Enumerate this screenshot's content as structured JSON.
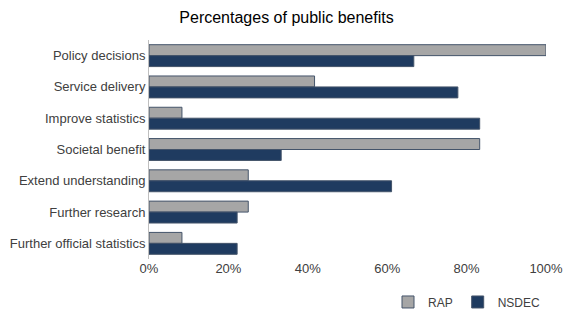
{
  "chart_data": {
    "type": "bar",
    "title": "Percentages of public benefits",
    "orientation": "horizontal",
    "categories": [
      "Policy decisions",
      "Service delivery",
      "Improve statistics",
      "Societal benefit",
      "Extend understanding",
      "Further research",
      "Further official statistics"
    ],
    "series": [
      {
        "name": "RAP",
        "color": "#a6a6a6",
        "values": [
          100,
          41.7,
          8.3,
          83.3,
          25,
          25,
          8.3
        ]
      },
      {
        "name": "NSDEC",
        "color": "#1f3b60",
        "values": [
          66.7,
          77.8,
          83.3,
          33.3,
          61.1,
          22.2,
          22.2
        ]
      }
    ],
    "xlim": [
      0,
      100
    ],
    "xticks": [
      {
        "value": 0,
        "label": "0%"
      },
      {
        "value": 20,
        "label": "20%"
      },
      {
        "value": 40,
        "label": "40%"
      },
      {
        "value": 60,
        "label": "60%"
      },
      {
        "value": 80,
        "label": "80%"
      },
      {
        "value": 100,
        "label": "100%"
      }
    ],
    "grid": false,
    "legend": "bottom right"
  }
}
